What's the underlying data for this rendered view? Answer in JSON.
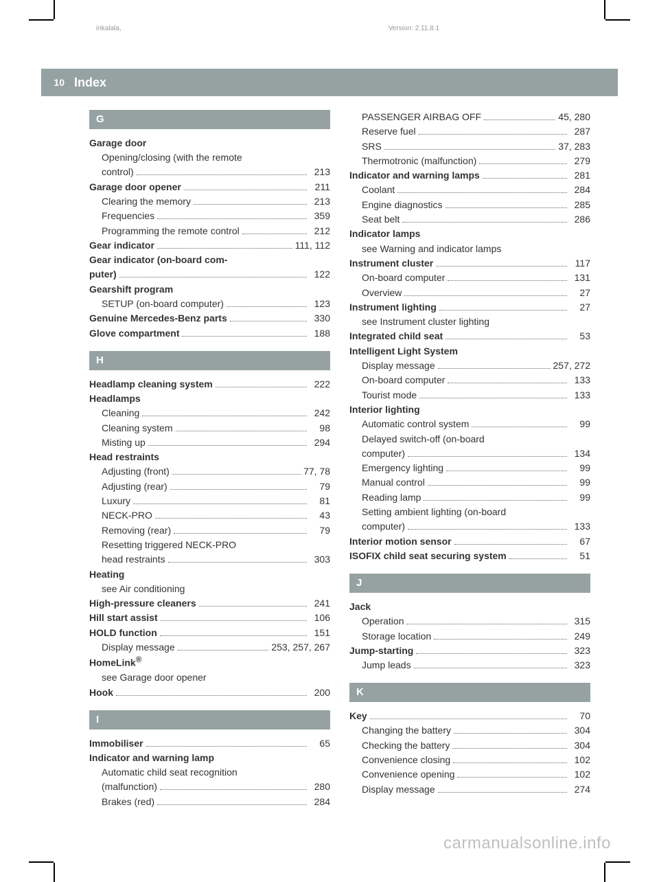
{
  "meta": {
    "left": "inkalala,",
    "right": "Version: 2.11.8.1"
  },
  "header": {
    "page_number": "10",
    "title": "Index"
  },
  "watermark": "carmanualsonline.info",
  "col1": [
    {
      "type": "letter",
      "text": "G",
      "first": true
    },
    {
      "type": "head",
      "text": "Garage door"
    },
    {
      "type": "sub",
      "text": "Opening/closing (with the remote",
      "wrap": true
    },
    {
      "type": "sub-cont",
      "text": "control)",
      "page": "213"
    },
    {
      "type": "head-pg",
      "text": "Garage door opener",
      "page": "211"
    },
    {
      "type": "sub",
      "text": "Clearing the memory",
      "page": "213"
    },
    {
      "type": "sub",
      "text": "Frequencies",
      "page": "359"
    },
    {
      "type": "sub",
      "text": "Programming the remote control",
      "page": "212"
    },
    {
      "type": "head-pg",
      "text": "Gear indicator",
      "page": "111, 112"
    },
    {
      "type": "head",
      "text": "Gear indicator (on-board com-"
    },
    {
      "type": "head-cont",
      "text": "puter)",
      "page": "122"
    },
    {
      "type": "head",
      "text": "Gearshift program"
    },
    {
      "type": "sub",
      "text": "SETUP (on-board computer)",
      "page": "123"
    },
    {
      "type": "head-pg",
      "text": "Genuine Mercedes-Benz parts",
      "page": "330"
    },
    {
      "type": "head-pg",
      "text": "Glove compartment",
      "page": "188"
    },
    {
      "type": "letter",
      "text": "H"
    },
    {
      "type": "head-pg",
      "text": "Headlamp cleaning system",
      "page": "222"
    },
    {
      "type": "head",
      "text": "Headlamps"
    },
    {
      "type": "sub",
      "text": "Cleaning",
      "page": "242"
    },
    {
      "type": "sub",
      "text": "Cleaning system",
      "page": "98"
    },
    {
      "type": "sub",
      "text": "Misting up",
      "page": "294"
    },
    {
      "type": "head",
      "text": "Head restraints"
    },
    {
      "type": "sub",
      "text": "Adjusting (front)",
      "page": "77, 78"
    },
    {
      "type": "sub",
      "text": "Adjusting (rear)",
      "page": "79"
    },
    {
      "type": "sub",
      "text": "Luxury",
      "page": "81"
    },
    {
      "type": "sub",
      "text": "NECK-PRO",
      "page": "43"
    },
    {
      "type": "sub",
      "text": "Removing (rear)",
      "page": "79"
    },
    {
      "type": "sub",
      "text": "Resetting triggered NECK-PRO",
      "wrap": true
    },
    {
      "type": "sub-cont",
      "text": "head restraints",
      "page": "303"
    },
    {
      "type": "head",
      "text": "Heating"
    },
    {
      "type": "sub-plain",
      "text": "see Air conditioning"
    },
    {
      "type": "head-pg",
      "text": "High-pressure cleaners",
      "page": "241"
    },
    {
      "type": "head-pg",
      "text": "Hill start assist",
      "page": "106"
    },
    {
      "type": "head-pg",
      "text": "HOLD function",
      "page": "151"
    },
    {
      "type": "sub",
      "text": "Display message",
      "page": "253, 257, 267"
    },
    {
      "type": "head-html",
      "text": "HomeLink<sup>®</sup>"
    },
    {
      "type": "sub-plain",
      "text": "see Garage door opener"
    },
    {
      "type": "head-pg",
      "text": "Hook",
      "page": "200"
    },
    {
      "type": "letter",
      "text": "I"
    },
    {
      "type": "head-pg",
      "text": "Immobiliser",
      "page": "65"
    },
    {
      "type": "head",
      "text": "Indicator and warning lamp"
    },
    {
      "type": "sub",
      "text": "Automatic child seat recognition",
      "wrap": true
    },
    {
      "type": "sub-cont",
      "text": "(malfunction)",
      "page": "280"
    },
    {
      "type": "sub",
      "text": "Brakes (red)",
      "page": "284"
    }
  ],
  "col2": [
    {
      "type": "sub",
      "text": "PASSENGER AIRBAG OFF",
      "page": "45, 280"
    },
    {
      "type": "sub",
      "text": "Reserve fuel",
      "page": "287"
    },
    {
      "type": "sub",
      "text": "SRS",
      "page": "37, 283"
    },
    {
      "type": "sub",
      "text": "Thermotronic (malfunction)",
      "page": "279"
    },
    {
      "type": "head-pg",
      "text": "Indicator and warning lamps",
      "page": "281"
    },
    {
      "type": "sub",
      "text": "Coolant",
      "page": "284"
    },
    {
      "type": "sub",
      "text": "Engine diagnostics",
      "page": "285"
    },
    {
      "type": "sub",
      "text": "Seat belt",
      "page": "286"
    },
    {
      "type": "head",
      "text": "Indicator lamps"
    },
    {
      "type": "sub-plain",
      "text": "see Warning and indicator lamps"
    },
    {
      "type": "head-pg",
      "text": "Instrument cluster",
      "page": "117"
    },
    {
      "type": "sub",
      "text": "On-board computer",
      "page": "131"
    },
    {
      "type": "sub",
      "text": "Overview",
      "page": "27"
    },
    {
      "type": "head-pg",
      "text": "Instrument lighting",
      "page": "27"
    },
    {
      "type": "sub-plain",
      "text": "see Instrument cluster lighting"
    },
    {
      "type": "head-pg",
      "text": "Integrated child seat",
      "page": "53"
    },
    {
      "type": "head",
      "text": "Intelligent Light System"
    },
    {
      "type": "sub",
      "text": "Display message",
      "page": "257, 272"
    },
    {
      "type": "sub",
      "text": "On-board computer",
      "page": "133"
    },
    {
      "type": "sub",
      "text": "Tourist mode",
      "page": "133"
    },
    {
      "type": "head",
      "text": "Interior lighting"
    },
    {
      "type": "sub",
      "text": "Automatic control system",
      "page": "99"
    },
    {
      "type": "sub",
      "text": "Delayed switch-off (on-board",
      "wrap": true
    },
    {
      "type": "sub-cont",
      "text": "computer)",
      "page": "134"
    },
    {
      "type": "sub",
      "text": "Emergency lighting",
      "page": "99"
    },
    {
      "type": "sub",
      "text": "Manual control",
      "page": "99"
    },
    {
      "type": "sub",
      "text": "Reading lamp",
      "page": "99"
    },
    {
      "type": "sub",
      "text": "Setting ambient lighting (on-board",
      "wrap": true
    },
    {
      "type": "sub-cont",
      "text": "computer)",
      "page": "133"
    },
    {
      "type": "head-pg",
      "text": "Interior motion sensor",
      "page": "67"
    },
    {
      "type": "head-pg",
      "text": "ISOFIX child seat securing system",
      "page": "51"
    },
    {
      "type": "letter",
      "text": "J"
    },
    {
      "type": "head",
      "text": "Jack"
    },
    {
      "type": "sub",
      "text": "Operation",
      "page": "315"
    },
    {
      "type": "sub",
      "text": "Storage location",
      "page": "249"
    },
    {
      "type": "head-pg",
      "text": "Jump-starting",
      "page": "323"
    },
    {
      "type": "sub",
      "text": "Jump leads",
      "page": "323"
    },
    {
      "type": "letter",
      "text": "K"
    },
    {
      "type": "head-pg",
      "text": "Key",
      "page": "70"
    },
    {
      "type": "sub",
      "text": "Changing the battery",
      "page": "304"
    },
    {
      "type": "sub",
      "text": "Checking the battery",
      "page": "304"
    },
    {
      "type": "sub",
      "text": "Convenience closing",
      "page": "102"
    },
    {
      "type": "sub",
      "text": "Convenience opening",
      "page": "102"
    },
    {
      "type": "sub",
      "text": "Display message",
      "page": "274"
    }
  ]
}
